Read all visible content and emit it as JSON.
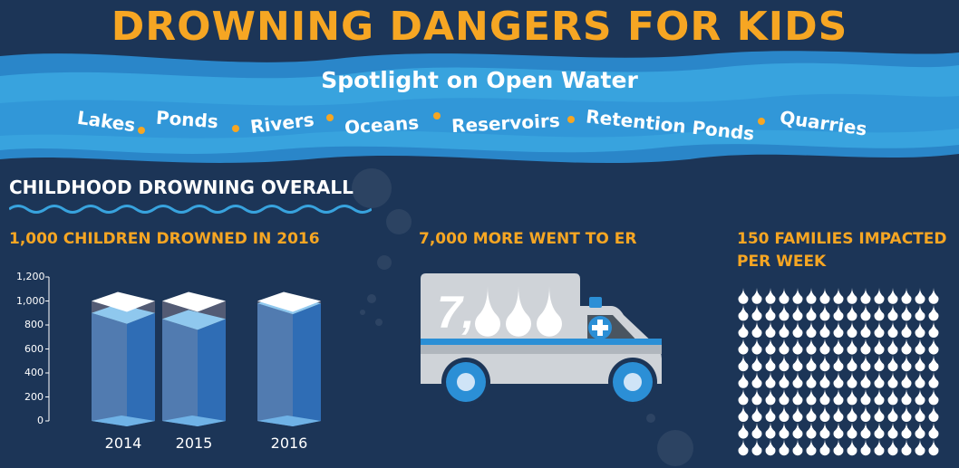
{
  "header": {
    "title": "DROWNING DANGERS FOR KIDS",
    "subtitle": "Spotlight on Open Water",
    "water_types": [
      "Lakes",
      "Ponds",
      "Rivers",
      "Oceans",
      "Reservoirs",
      "Retention Ponds",
      "Quarries"
    ]
  },
  "section": {
    "title": "CHILDHOOD DROWNING OVERALL"
  },
  "stats": {
    "drowned": "1,000 CHILDREN DROWNED IN 2016",
    "er": "7,000 MORE WENT TO ER",
    "families_line1": "150 FAMILIES IMPACTED",
    "families_line2": "PER WEEK"
  },
  "ambulance": {
    "label_digit": "7,",
    "drop_count": 3
  },
  "families_icon": {
    "rows": 10,
    "cols": 15,
    "icon": "water-drop-icon"
  },
  "colors": {
    "accent": "#f6a623",
    "background": "#1c3557",
    "wave": "#2f8fd0",
    "water": "#3a78c2"
  },
  "chart_data": {
    "type": "bar",
    "categories": [
      "2014",
      "2015",
      "2016"
    ],
    "values": [
      900,
      850,
      980
    ],
    "capacity": 1000,
    "yticks": [
      "0",
      "200",
      "400",
      "600",
      "800",
      "1,000",
      "1,200"
    ],
    "ylim": [
      0,
      1200
    ],
    "title": "",
    "xlabel": "",
    "ylabel": ""
  }
}
